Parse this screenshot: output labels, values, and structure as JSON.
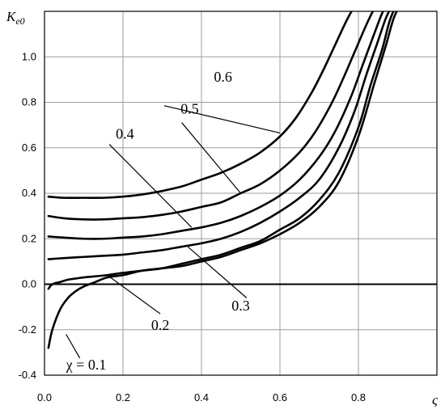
{
  "chart_data": {
    "type": "line",
    "title": "",
    "ylabel_main": "K",
    "ylabel_sub": "e0",
    "xlabel": "ς",
    "xlim": [
      0,
      1.0
    ],
    "ylim": [
      -0.4,
      1.2
    ],
    "xticks": [
      "0.0",
      "0.2",
      "0.4",
      "0.6",
      "0.8"
    ],
    "yticks": [
      "-0.4",
      "-0.2",
      "0.0",
      "0.2",
      "0.4",
      "0.6",
      "0.8",
      "1.0"
    ],
    "grid": true,
    "series": [
      {
        "name": "χ = 0.1",
        "x": [
          0.01,
          0.02,
          0.04,
          0.06,
          0.08,
          0.1,
          0.13,
          0.16,
          0.2,
          0.25,
          0.3,
          0.35,
          0.4,
          0.45,
          0.5,
          0.55,
          0.6,
          0.65,
          0.7,
          0.75,
          0.8,
          0.84,
          0.87,
          0.89,
          0.91
        ],
        "y": [
          -0.28,
          -0.2,
          -0.11,
          -0.06,
          -0.03,
          -0.01,
          0.01,
          0.03,
          0.04,
          0.06,
          0.07,
          0.08,
          0.1,
          0.12,
          0.15,
          0.18,
          0.22,
          0.27,
          0.34,
          0.45,
          0.65,
          0.88,
          1.05,
          1.17,
          1.24
        ]
      },
      {
        "name": "0.2",
        "x": [
          0.01,
          0.02,
          0.04,
          0.06,
          0.08,
          0.1,
          0.13,
          0.16,
          0.2,
          0.25,
          0.3,
          0.35,
          0.4,
          0.45,
          0.5,
          0.55,
          0.6,
          0.65,
          0.7,
          0.75,
          0.8,
          0.83,
          0.86,
          0.88,
          0.9
        ],
        "y": [
          -0.02,
          0.0,
          0.01,
          0.02,
          0.025,
          0.03,
          0.035,
          0.04,
          0.05,
          0.06,
          0.07,
          0.09,
          0.11,
          0.13,
          0.16,
          0.19,
          0.24,
          0.29,
          0.37,
          0.49,
          0.69,
          0.87,
          1.03,
          1.16,
          1.24
        ]
      },
      {
        "name": "0.3",
        "x": [
          0.01,
          0.05,
          0.1,
          0.15,
          0.2,
          0.25,
          0.3,
          0.35,
          0.4,
          0.45,
          0.5,
          0.55,
          0.6,
          0.65,
          0.7,
          0.75,
          0.79,
          0.82,
          0.85,
          0.87,
          0.89
        ],
        "y": [
          0.11,
          0.115,
          0.12,
          0.125,
          0.13,
          0.14,
          0.15,
          0.165,
          0.18,
          0.2,
          0.23,
          0.27,
          0.32,
          0.38,
          0.46,
          0.6,
          0.76,
          0.92,
          1.07,
          1.17,
          1.24
        ]
      },
      {
        "name": "0.4",
        "x": [
          0.01,
          0.05,
          0.1,
          0.15,
          0.2,
          0.25,
          0.3,
          0.35,
          0.4,
          0.45,
          0.5,
          0.55,
          0.6,
          0.65,
          0.7,
          0.74,
          0.78,
          0.81,
          0.84,
          0.86,
          0.875
        ],
        "y": [
          0.21,
          0.205,
          0.2,
          0.2,
          0.205,
          0.21,
          0.22,
          0.235,
          0.25,
          0.27,
          0.3,
          0.34,
          0.39,
          0.46,
          0.56,
          0.67,
          0.82,
          0.96,
          1.1,
          1.19,
          1.24
        ]
      },
      {
        "name": "0.5",
        "x": [
          0.01,
          0.05,
          0.1,
          0.15,
          0.2,
          0.25,
          0.3,
          0.35,
          0.4,
          0.45,
          0.5,
          0.55,
          0.6,
          0.65,
          0.69,
          0.73,
          0.76,
          0.79,
          0.82,
          0.84,
          0.855
        ],
        "y": [
          0.3,
          0.29,
          0.285,
          0.285,
          0.29,
          0.295,
          0.305,
          0.32,
          0.34,
          0.36,
          0.4,
          0.44,
          0.5,
          0.58,
          0.67,
          0.79,
          0.9,
          1.02,
          1.14,
          1.21,
          1.24
        ]
      },
      {
        "name": "0.6",
        "x": [
          0.01,
          0.05,
          0.1,
          0.15,
          0.2,
          0.25,
          0.3,
          0.35,
          0.4,
          0.45,
          0.5,
          0.55,
          0.6,
          0.64,
          0.68,
          0.71,
          0.74,
          0.77,
          0.79,
          0.805
        ],
        "y": [
          0.385,
          0.38,
          0.38,
          0.38,
          0.385,
          0.395,
          0.41,
          0.43,
          0.46,
          0.49,
          0.53,
          0.58,
          0.65,
          0.73,
          0.84,
          0.94,
          1.05,
          1.16,
          1.22,
          1.24
        ]
      }
    ],
    "annotations": [
      {
        "text": "0.6",
        "series": 5
      },
      {
        "text": "0.5",
        "series": 4
      },
      {
        "text": "0.4",
        "series": 3
      },
      {
        "text": "0.3",
        "series": 2
      },
      {
        "text": "0.2",
        "series": 1
      },
      {
        "text": "χ = 0.1",
        "series": 0
      }
    ]
  }
}
